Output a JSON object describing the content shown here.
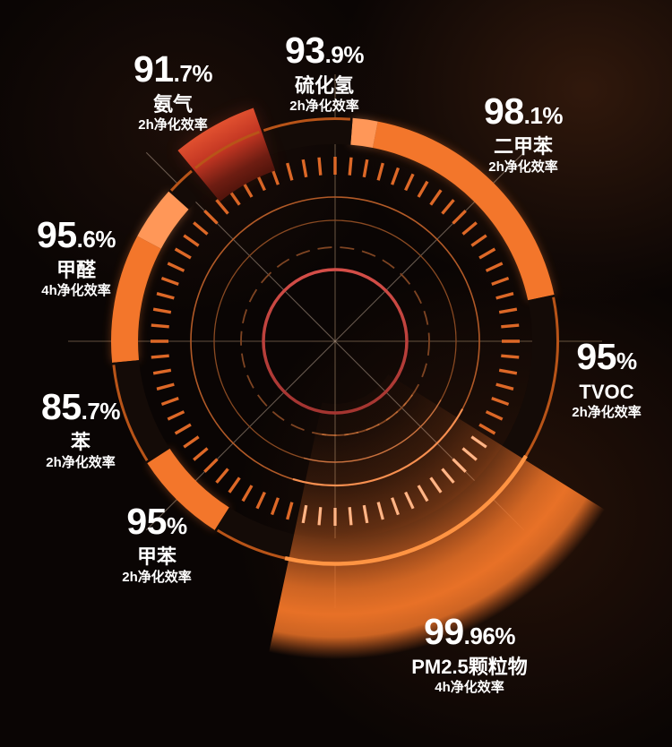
{
  "chart_data": {
    "type": "radial-gauge",
    "title": "",
    "legend": "none",
    "series": [
      {
        "name": "氨气",
        "value": 91.7,
        "value_main": "91",
        "value_suffix": ".7%",
        "duration": "2h净化效率"
      },
      {
        "name": "硫化氢",
        "value": 93.9,
        "value_main": "93",
        "value_suffix": ".9%",
        "duration": "2h净化效率"
      },
      {
        "name": "二甲苯",
        "value": 98.1,
        "value_main": "98",
        "value_suffix": ".1%",
        "duration": "2h净化效率"
      },
      {
        "name": "甲醛",
        "value": 95.6,
        "value_main": "95",
        "value_suffix": ".6%",
        "duration": "4h净化效率"
      },
      {
        "name": "TVOC",
        "value": 95,
        "value_main": "95",
        "value_suffix": "%",
        "duration": "2h净化效率"
      },
      {
        "name": "苯",
        "value": 85.7,
        "value_main": "85",
        "value_suffix": ".7%",
        "duration": "2h净化效率"
      },
      {
        "name": "甲苯",
        "value": 95,
        "value_main": "95",
        "value_suffix": "%",
        "duration": "2h净化效率"
      },
      {
        "name": "PM2.5颗粒物",
        "value": 99.96,
        "value_main": "99",
        "value_suffix": ".96%",
        "duration": "4h净化效率"
      }
    ],
    "geometry": {
      "center": [
        374,
        381
      ],
      "axes_r": 298,
      "ring": {
        "r_in": 220,
        "r_out": 250,
        "r_edge": 248.5
      },
      "ticks": {
        "r_in": 186,
        "r_out": 206,
        "step": 5,
        "width": 3.4
      },
      "circles": {
        "red": 80,
        "dashed": 105,
        "mid": 135,
        "outer": 161
      },
      "segments": [
        {
          "type": "bright",
          "a0": 12,
          "a1": 79
        },
        {
          "type": "light",
          "a0": 79,
          "a1": 85.5
        },
        {
          "type": "dark",
          "a0": 85.5,
          "a1": 109.3
        },
        {
          "type": "dark",
          "a0": 109.3,
          "a1": 129.5
        },
        {
          "type": "dark",
          "a0": 129.5,
          "a1": 138
        },
        {
          "type": "light",
          "a0": 138,
          "a1": 152
        },
        {
          "type": "bright",
          "a0": 152,
          "a1": 185.5
        },
        {
          "type": "dark",
          "a0": 185.5,
          "a1": 213
        },
        {
          "type": "bright",
          "a0": 213,
          "a1": 237.5
        },
        {
          "type": "dark",
          "a0": 237.5,
          "a1": 258
        },
        {
          "type": "dark",
          "a0": 258,
          "a1": 328
        },
        {
          "type": "dark",
          "a0": 328,
          "a1": 372
        }
      ],
      "red_wedge": {
        "a0": 109.3,
        "a1": 129.5,
        "r0": 202,
        "r1": 276
      },
      "wedge": {
        "a0": 258,
        "a1": 328,
        "r0": 70,
        "r1": 355
      },
      "colors": {
        "bright": "#f3762b",
        "light": "#ff9758",
        "dark": "#140b07",
        "edge": "#b85418",
        "tick": "#dd6827",
        "tick_light": "#ffbd92",
        "circle_dash": "#7e4422",
        "circle_mid": "#8a4a22",
        "circle_outer": "#b25a27",
        "red_ring_top": "#d54e48",
        "red_ring_bottom": "#a23330",
        "red_bright": "#e25130",
        "red_mid": "#c13522",
        "red_dark": "#6e1d12",
        "red_deep": "#54150c",
        "wedge": "#e96f28",
        "wedge_bright": "#ee7428",
        "axis_hv": "rgba(155,128,100,0.62)",
        "axis_diag": "rgba(170,150,132,0.58)"
      }
    }
  }
}
